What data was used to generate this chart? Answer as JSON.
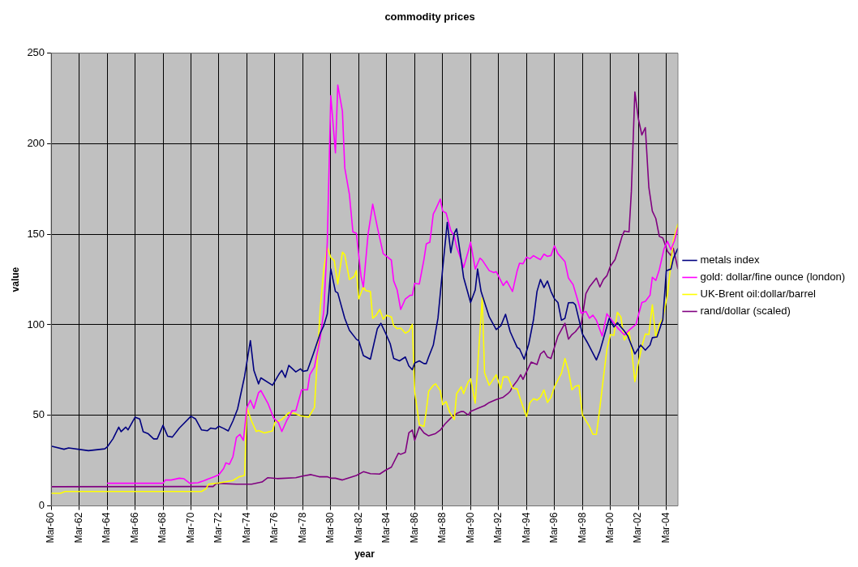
{
  "chart_data": {
    "type": "line",
    "title": "commodity prices",
    "xlabel": "year",
    "ylabel": "value",
    "xlim": [
      "1960-03",
      "2005-01"
    ],
    "xticks": [
      {
        "value": "1960-03",
        "label": "Mar-60"
      },
      {
        "value": "1962-03",
        "label": "Mar-62"
      },
      {
        "value": "1964-03",
        "label": "Mar-64"
      },
      {
        "value": "1966-03",
        "label": "Mar-66"
      },
      {
        "value": "1968-03",
        "label": "Mar-68"
      },
      {
        "value": "1970-03",
        "label": "Mar-70"
      },
      {
        "value": "1972-03",
        "label": "Mar-72"
      },
      {
        "value": "1974-03",
        "label": "Mar-74"
      },
      {
        "value": "1976-03",
        "label": "Mar-76"
      },
      {
        "value": "1978-03",
        "label": "Mar-78"
      },
      {
        "value": "1980-03",
        "label": "Mar-80"
      },
      {
        "value": "1982-03",
        "label": "Mar-82"
      },
      {
        "value": "1984-03",
        "label": "Mar-84"
      },
      {
        "value": "1986-03",
        "label": "Mar-86"
      },
      {
        "value": "1988-03",
        "label": "Mar-88"
      },
      {
        "value": "1990-03",
        "label": "Mar-90"
      },
      {
        "value": "1992-03",
        "label": "Mar-92"
      },
      {
        "value": "1994-03",
        "label": "Mar-94"
      },
      {
        "value": "1996-03",
        "label": "Mar-96"
      },
      {
        "value": "1998-03",
        "label": "Mar-98"
      },
      {
        "value": "2000-03",
        "label": "Mar-00"
      },
      {
        "value": "2002-03",
        "label": "Mar-02"
      },
      {
        "value": "2004-03",
        "label": "Mar-04"
      }
    ],
    "ylim": [
      0,
      250
    ],
    "yticks": [
      0,
      50,
      100,
      150,
      200,
      250
    ],
    "grid": true,
    "legend": "right",
    "series": [
      {
        "name": "metals index",
        "color": "#000080",
        "x": [
          "1960-03",
          "1961-02",
          "1961-06",
          "1962-11",
          "1964-01",
          "1964-03",
          "1964-08",
          "1965-01",
          "1965-03",
          "1965-07",
          "1965-09",
          "1966-03",
          "1966-07",
          "1966-10",
          "1967-02",
          "1967-07",
          "1967-10",
          "1968-03",
          "1968-07",
          "1968-11",
          "1969-05",
          "1970-03",
          "1970-07",
          "1970-12",
          "1971-05",
          "1971-08",
          "1971-12",
          "1972-03",
          "1972-07",
          "1972-11",
          "1973-03",
          "1973-07",
          "1974-01",
          "1974-06",
          "1974-09",
          "1975-01",
          "1975-03",
          "1976-01",
          "1976-07",
          "1976-09",
          "1976-12",
          "1977-03",
          "1977-09",
          "1978-01",
          "1978-03",
          "1978-07",
          "1978-12",
          "1979-06",
          "1979-09",
          "1979-12",
          "1980-03",
          "1980-07",
          "1980-09",
          "1981-03",
          "1981-07",
          "1982-01",
          "1982-03",
          "1982-07",
          "1983-01",
          "1983-07",
          "1983-10",
          "1984-02",
          "1984-06",
          "1984-09",
          "1985-02",
          "1985-07",
          "1985-10",
          "1986-01",
          "1986-03",
          "1986-07",
          "1986-11",
          "1987-01",
          "1987-03",
          "1987-07",
          "1987-11",
          "1988-03",
          "1988-07",
          "1988-10",
          "1989-01",
          "1989-03",
          "1989-07",
          "1989-09",
          "1990-03",
          "1990-07",
          "1990-09",
          "1990-12",
          "1991-07",
          "1992-01",
          "1992-05",
          "1992-09",
          "1993-01",
          "1993-03",
          "1993-07",
          "1993-09",
          "1994-01",
          "1994-05",
          "1994-09",
          "1994-12",
          "1995-03",
          "1995-06",
          "1995-09",
          "1995-12",
          "1996-03",
          "1996-06",
          "1996-09",
          "1996-12",
          "1997-03",
          "1997-07",
          "1997-09",
          "1998-03",
          "1998-07",
          "1999-03",
          "1999-06",
          "2000-02",
          "2000-06",
          "2000-09",
          "2001-03",
          "2001-06",
          "2001-12",
          "2002-05",
          "2002-09",
          "2003-01",
          "2003-03",
          "2003-07",
          "2003-12",
          "2004-03",
          "2004-07",
          "2004-09",
          "2005-01"
        ],
        "values": [
          33,
          31.3,
          32,
          30.5,
          31.5,
          32.5,
          37,
          43.5,
          41,
          43.5,
          42,
          49,
          48,
          41,
          40,
          37,
          37,
          44.5,
          38.5,
          38,
          43,
          49.5,
          48,
          42,
          41.5,
          43,
          42.5,
          44,
          42.8,
          41.4,
          46.9,
          53.5,
          71.5,
          91.3,
          74.8,
          67.4,
          70.7,
          66.6,
          73.2,
          74.8,
          71,
          77.6,
          74,
          75.7,
          74.3,
          74.8,
          83.9,
          95.4,
          99.5,
          106,
          130.8,
          118.4,
          117.6,
          103.6,
          97,
          92,
          91.3,
          83,
          81,
          97.9,
          100.8,
          95.4,
          89.6,
          81.4,
          80.1,
          82.2,
          77.3,
          75.2,
          78.9,
          80.1,
          78.6,
          78.6,
          82.2,
          88.8,
          103.6,
          130.8,
          156.6,
          139.8,
          150.5,
          153,
          135.7,
          126.2,
          112.3,
          119.2,
          130.8,
          118.4,
          104.4,
          97.4,
          99.5,
          105.8,
          96.2,
          93.3,
          87.5,
          86.7,
          81,
          89.6,
          102.8,
          118.4,
          125,
          120.6,
          124.2,
          118.4,
          114.3,
          112.3,
          102.5,
          103.6,
          112.2,
          112.3,
          111,
          94.9,
          90.5,
          80.6,
          85.5,
          103.6,
          98.8,
          101.2,
          96.5,
          93.8,
          83.9,
          88.8,
          86,
          88.8,
          92.9,
          93.3,
          102.8,
          129.9,
          130.8,
          136.5,
          142.3
        ]
      },
      {
        "name": "gold: dollar/fine ounce (london)",
        "color": "#ff00ff",
        "x": [
          "1964-03",
          "1968-03",
          "1968-05",
          "1968-10",
          "1969-05",
          "1969-09",
          "1970-02",
          "1970-09",
          "1971-02",
          "1971-11",
          "1972-03",
          "1972-07",
          "1972-09",
          "1972-12",
          "1973-03",
          "1973-06",
          "1973-09",
          "1973-12",
          "1974-03",
          "1974-06",
          "1974-09",
          "1975-01",
          "1975-03",
          "1975-09",
          "1976-02",
          "1976-06",
          "1976-09",
          "1977-01",
          "1977-06",
          "1977-09",
          "1978-02",
          "1978-07",
          "1978-09",
          "1979-01",
          "1979-06",
          "1979-09",
          "1979-12",
          "1980-03",
          "1980-07",
          "1980-09",
          "1981-01",
          "1981-03",
          "1981-07",
          "1981-10",
          "1982-01",
          "1982-05",
          "1982-07",
          "1982-11",
          "1983-03",
          "1983-07",
          "1983-12",
          "1984-07",
          "1984-09",
          "1984-12",
          "1985-03",
          "1985-07",
          "1985-11",
          "1986-01",
          "1986-03",
          "1986-07",
          "1986-11",
          "1987-01",
          "1987-04",
          "1987-07",
          "1987-09",
          "1988-01",
          "1988-03",
          "1988-06",
          "1988-10",
          "1989-01",
          "1989-03",
          "1989-07",
          "1989-09",
          "1990-01",
          "1990-03",
          "1990-07",
          "1990-11",
          "1991-01",
          "1991-07",
          "1991-11",
          "1992-01",
          "1992-07",
          "1992-10",
          "1993-03",
          "1993-07",
          "1993-09",
          "1993-12",
          "1994-03",
          "1994-06",
          "1994-09",
          "1994-12",
          "1995-03",
          "1995-06",
          "1995-09",
          "1995-12",
          "1996-03",
          "1996-06",
          "1996-12",
          "1997-03",
          "1997-07",
          "1997-11",
          "1998-02",
          "1998-06",
          "1998-09",
          "1998-12",
          "1999-03",
          "1999-08",
          "1999-12",
          "2000-05",
          "2000-09",
          "2001-03",
          "2001-07",
          "2002-01",
          "2002-06",
          "2002-09",
          "2003-01",
          "2003-03",
          "2003-06",
          "2003-09",
          "2004-01",
          "2004-04",
          "2004-07",
          "2004-10",
          "2005-01"
        ],
        "values": [
          12.5,
          12.5,
          14.3,
          14.3,
          15.3,
          15,
          12.5,
          12.8,
          13.9,
          16.1,
          17.3,
          20.6,
          23.8,
          23,
          27.1,
          37.8,
          39.5,
          36.2,
          54.3,
          58.4,
          53.8,
          62.5,
          63.7,
          56.7,
          48.5,
          46,
          41.1,
          46.9,
          52.6,
          52.6,
          64.1,
          64.1,
          72.4,
          76.8,
          92.9,
          107.7,
          145.6,
          226.5,
          194.9,
          232.4,
          217.9,
          186.7,
          171.9,
          151.3,
          150.5,
          126.6,
          120.9,
          150,
          166.6,
          153.8,
          139.3,
          135.7,
          124.2,
          119.2,
          108.5,
          114.3,
          116.3,
          116.3,
          122.9,
          122.5,
          136.2,
          144.7,
          145.6,
          161.2,
          163.7,
          169.4,
          162.8,
          161.7,
          152.1,
          148.8,
          143.1,
          135.7,
          131.6,
          140.6,
          145.6,
          130.8,
          136.8,
          135.7,
          129.9,
          128.8,
          129.4,
          121.7,
          124.2,
          118.4,
          129.9,
          134,
          133.7,
          137.3,
          136.5,
          138.2,
          137,
          136,
          139,
          137.8,
          138.3,
          143.6,
          139.3,
          134.9,
          125.8,
          122.2,
          113.5,
          106.4,
          107.4,
          103.6,
          105.3,
          102.5,
          93.8,
          106.1,
          101.8,
          98.5,
          94.4,
          97,
          100.3,
          112.3,
          113,
          116.3,
          126.2,
          124.5,
          130.4,
          141.9,
          146.1,
          141.5,
          146.4,
          153.8
        ]
      },
      {
        "name": "UK-Brent oil:dollar/barrel",
        "color": "#ffff00",
        "x": [
          "1960-03",
          "1960-11",
          "1961-03",
          "1970-12",
          "1971-04",
          "1971-06",
          "1972-03",
          "1973-03",
          "1973-08",
          "1974-01",
          "1974-03",
          "1974-07",
          "1974-11",
          "1975-01",
          "1975-06",
          "1976-01",
          "1976-03",
          "1976-09",
          "1977-03",
          "1977-08",
          "1978-01",
          "1978-08",
          "1979-01",
          "1979-06",
          "1979-09",
          "1979-12",
          "1980-03",
          "1980-06",
          "1980-09",
          "1981-01",
          "1981-03",
          "1981-07",
          "1981-11",
          "1982-01",
          "1982-03",
          "1982-07",
          "1982-09",
          "1983-01",
          "1983-03",
          "1983-06",
          "1983-09",
          "1983-12",
          "1984-03",
          "1984-07",
          "1984-09",
          "1984-12",
          "1985-03",
          "1985-07",
          "1985-10",
          "1986-01",
          "1986-03",
          "1986-07",
          "1986-11",
          "1987-01",
          "1987-03",
          "1987-07",
          "1987-09",
          "1988-01",
          "1988-03",
          "1988-06",
          "1988-09",
          "1989-01",
          "1989-03",
          "1989-07",
          "1989-09",
          "1990-01",
          "1990-03",
          "1990-07",
          "1991-01",
          "1991-03",
          "1991-07",
          "1992-01",
          "1992-05",
          "1992-07",
          "1992-11",
          "1993-03",
          "1993-07",
          "1993-10",
          "1994-03",
          "1994-06",
          "1994-09",
          "1994-12",
          "1995-03",
          "1995-06",
          "1995-09",
          "1995-12",
          "1996-03",
          "1996-09",
          "1996-12",
          "1997-03",
          "1997-06",
          "1997-09",
          "1997-12",
          "1998-03",
          "1998-09",
          "1998-12",
          "1999-03",
          "1999-06",
          "1999-09",
          "1999-12",
          "2000-03",
          "2000-06",
          "2000-09",
          "2000-12",
          "2001-03",
          "2001-07",
          "2001-09",
          "2001-12",
          "2002-02",
          "2002-06",
          "2002-09",
          "2002-12",
          "2003-03",
          "2003-06",
          "2003-09",
          "2003-12",
          "2004-04",
          "2004-07",
          "2004-09",
          "2005-01"
        ],
        "values": [
          7,
          7,
          8,
          8,
          9.5,
          12,
          12.7,
          14,
          16,
          16.8,
          54.3,
          46.9,
          41.1,
          41.6,
          40.3,
          41.4,
          46,
          47.7,
          51.5,
          51,
          49.8,
          49,
          54.3,
          109.4,
          130.8,
          142.6,
          137.3,
          135.4,
          122.5,
          140.1,
          138.7,
          125,
          126.6,
          129.9,
          114.3,
          120.9,
          118.9,
          118.4,
          103.6,
          105.3,
          108.5,
          103.1,
          105.3,
          104.4,
          99.5,
          97.9,
          98.2,
          95.4,
          96.5,
          100.3,
          63.3,
          44.9,
          43.9,
          52.6,
          63.3,
          66.6,
          67.4,
          63.7,
          55.9,
          57.6,
          51.8,
          47.7,
          62,
          65.8,
          62,
          68.6,
          70.2,
          56.7,
          115.1,
          73.5,
          66.6,
          72.4,
          64.6,
          71.2,
          71.2,
          65,
          64.6,
          58.4,
          49.3,
          57.1,
          59.2,
          58.4,
          60,
          64.1,
          57.1,
          60,
          65.8,
          73.2,
          81.4,
          74.8,
          64.1,
          66.1,
          66.6,
          50.2,
          43.9,
          39.5,
          39.5,
          54.3,
          70.7,
          86.3,
          94.6,
          94.2,
          106.9,
          104.4,
          91.6,
          96.2,
          88,
          68.6,
          75.7,
          88,
          94.9,
          94.6,
          111,
          92.9,
          100.3,
          103.6,
          116.6,
          134,
          146.4,
          155.8
        ]
      },
      {
        "name": "rand/dollar (scaled)",
        "color": "#800080",
        "x": [
          "1960-03",
          "1971-10",
          "1972-01",
          "1973-06",
          "1974-07",
          "1975-04",
          "1975-09",
          "1976-05",
          "1977-09",
          "1978-02",
          "1978-10",
          "1979-05",
          "1979-12",
          "1980-03",
          "1980-07",
          "1981-01",
          "1981-07",
          "1982-01",
          "1982-07",
          "1983-01",
          "1983-09",
          "1984-02",
          "1984-07",
          "1985-01",
          "1985-03",
          "1985-07",
          "1985-10",
          "1986-01",
          "1986-03",
          "1986-07",
          "1986-11",
          "1987-03",
          "1987-09",
          "1988-01",
          "1988-05",
          "1988-10",
          "1989-03",
          "1989-07",
          "1989-09",
          "1990-01",
          "1990-03",
          "1990-09",
          "1991-03",
          "1991-07",
          "1992-01",
          "1992-07",
          "1992-11",
          "1993-01",
          "1993-03",
          "1993-07",
          "1993-10",
          "1993-12",
          "1994-03",
          "1994-07",
          "1994-12",
          "1995-03",
          "1995-06",
          "1995-09",
          "1995-12",
          "1996-06",
          "1996-12",
          "1997-03",
          "1997-06",
          "1997-09",
          "1998-02",
          "1998-06",
          "1998-09",
          "1999-03",
          "1999-06",
          "1999-09",
          "1999-12",
          "2000-03",
          "2000-07",
          "2000-10",
          "2001-01",
          "2001-03",
          "2001-07",
          "2001-09",
          "2001-12",
          "2002-03",
          "2002-06",
          "2002-09",
          "2002-12",
          "2003-03",
          "2003-06",
          "2003-09",
          "2003-12",
          "2004-04",
          "2004-07",
          "2004-09",
          "2005-01"
        ],
        "values": [
          10.6,
          10.7,
          12.5,
          12,
          12,
          13.2,
          15.6,
          15.1,
          15.6,
          16.4,
          17.3,
          16.1,
          16.1,
          15.3,
          15.3,
          14.3,
          15.6,
          16.8,
          18.9,
          17.8,
          17.6,
          19.7,
          21.4,
          29.1,
          28.5,
          29.6,
          40.3,
          41.9,
          36.2,
          43.6,
          40.3,
          38.7,
          40,
          41.9,
          45.2,
          48.5,
          51,
          52.1,
          52.1,
          50.2,
          52.1,
          53.8,
          55.4,
          57.1,
          58.7,
          60,
          62,
          63.3,
          65.8,
          69.1,
          72.4,
          69.9,
          74,
          79.4,
          78.1,
          83.9,
          85.5,
          82.2,
          81.4,
          93.8,
          100.8,
          92.1,
          94.6,
          96.2,
          100.3,
          117.3,
          120.9,
          125.8,
          120.9,
          125,
          127.1,
          132.4,
          136,
          142.3,
          148.8,
          151.8,
          151.3,
          173.5,
          228.6,
          213.8,
          204.8,
          208.9,
          176,
          162.8,
          158.7,
          148.8,
          148,
          140.6,
          138.2,
          142.3,
          130.8
        ]
      }
    ]
  }
}
